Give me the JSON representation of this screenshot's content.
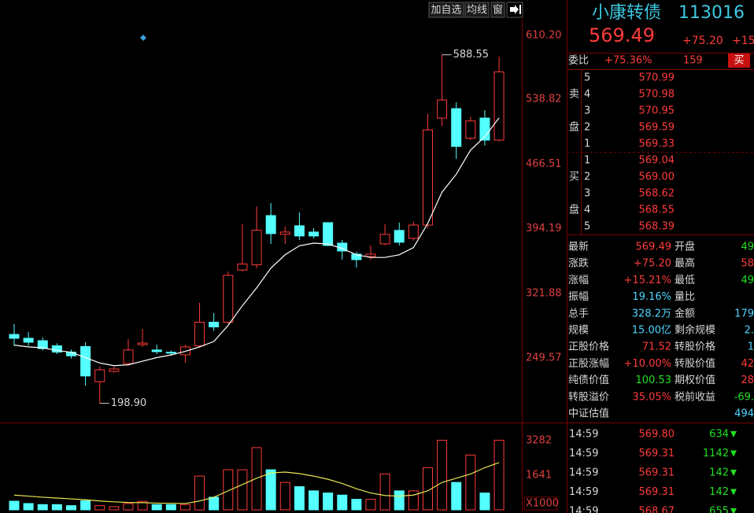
{
  "toolbar": {
    "buttons": [
      "加自选",
      "均线",
      "窗"
    ]
  },
  "kline": {
    "ylim": [
      179.2,
      628.7
    ],
    "yticks": [
      {
        "value": 610.2,
        "label": "610.20"
      },
      {
        "value": 538.82,
        "label": "538.82"
      },
      {
        "value": 466.51,
        "label": "466.51"
      },
      {
        "value": 394.19,
        "label": "394.19"
      },
      {
        "value": 321.88,
        "label": "321.88"
      },
      {
        "value": 249.57,
        "label": "249.57"
      }
    ],
    "candles": [
      {
        "open": 275.9,
        "close": 271.6,
        "high": 287.4,
        "low": 263.2
      },
      {
        "open": 271.6,
        "close": 267.2,
        "high": 278.5,
        "low": 263.2
      },
      {
        "open": 268.9,
        "close": 260.1,
        "high": 272.5,
        "low": 258.0
      },
      {
        "open": 263.2,
        "close": 256.2,
        "high": 266.0,
        "low": 254.0
      },
      {
        "open": 256.2,
        "close": 252.0,
        "high": 259.0,
        "low": 249.0
      },
      {
        "open": 262.4,
        "close": 229.5,
        "high": 267.2,
        "low": 218.8
      },
      {
        "open": 223.1,
        "close": 236.4,
        "high": 240.0,
        "low": 198.9
      },
      {
        "open": 234.6,
        "close": 237.3,
        "high": 240.0,
        "low": 233.0
      },
      {
        "open": 243.4,
        "close": 258.5,
        "high": 270.7,
        "low": 240.8
      },
      {
        "open": 264.5,
        "close": 266.3,
        "high": 282.1,
        "low": 262.0
      },
      {
        "open": 258.5,
        "close": 256.7,
        "high": 264.5,
        "low": 254.0
      },
      {
        "open": 256.0,
        "close": 255.0,
        "high": 258.0,
        "low": 252.0
      },
      {
        "open": 253.2,
        "close": 261.9,
        "high": 264.5,
        "low": 244.3
      },
      {
        "open": 263.2,
        "close": 289.6,
        "high": 311.2,
        "low": 261.0
      },
      {
        "open": 289.6,
        "close": 284.3,
        "high": 299.7,
        "low": 280.0
      },
      {
        "open": 289.6,
        "close": 342.0,
        "high": 346.3,
        "low": 287.4
      },
      {
        "open": 348.0,
        "close": 354.6,
        "high": 399.0,
        "low": 346.3
      },
      {
        "open": 353.7,
        "close": 392.4,
        "high": 419.3,
        "low": 350.0
      },
      {
        "open": 408.8,
        "close": 388.6,
        "high": 422.8,
        "low": 377.2
      },
      {
        "open": 387.8,
        "close": 390.4,
        "high": 396.5,
        "low": 377.2
      },
      {
        "open": 397.4,
        "close": 386.0,
        "high": 412.3,
        "low": 381.6
      },
      {
        "open": 390.4,
        "close": 386.0,
        "high": 394.8,
        "low": 383.3
      },
      {
        "open": 400.9,
        "close": 375.4,
        "high": 400.9,
        "low": 374.5
      },
      {
        "open": 378.0,
        "close": 369.2,
        "high": 381.6,
        "low": 359.5
      },
      {
        "open": 365.7,
        "close": 359.5,
        "high": 368.3,
        "low": 350.7
      },
      {
        "open": 363.0,
        "close": 365.7,
        "high": 375.4,
        "low": 359.5
      },
      {
        "open": 377.2,
        "close": 387.8,
        "high": 399.0,
        "low": 375.4
      },
      {
        "open": 392.2,
        "close": 379.0,
        "high": 400.9,
        "low": 375.4
      },
      {
        "open": 383.4,
        "close": 398.2,
        "high": 401.8,
        "low": 380.7
      },
      {
        "open": 398.2,
        "close": 504.6,
        "high": 522.2,
        "low": 394.8
      },
      {
        "open": 517.8,
        "close": 538.0,
        "high": 588.55,
        "low": 509.0
      },
      {
        "open": 528.4,
        "close": 486.1,
        "high": 535.4,
        "low": 472.1
      },
      {
        "open": 495.2,
        "close": 514.6,
        "high": 519.1,
        "low": 493.2
      },
      {
        "open": 517.8,
        "close": 493.2,
        "high": 526.6,
        "low": 487.1
      },
      {
        "open": 493.2,
        "close": 569.49,
        "high": 586.5,
        "low": 491.5
      }
    ],
    "ma": [
      264,
      262,
      261,
      258,
      256,
      250,
      244,
      241,
      242,
      246,
      250,
      253,
      257,
      262,
      268,
      286,
      308,
      328,
      350,
      365,
      375,
      378,
      377,
      372,
      365,
      362,
      362,
      365,
      373,
      400,
      435,
      455,
      482,
      497,
      518
    ],
    "high_label": "588.55",
    "low_label": "198.90"
  },
  "volume": {
    "ylim": [
      0,
      4028
    ],
    "yticks": [
      3282,
      1641
    ],
    "unit": "X1000",
    "values": [
      410,
      300,
      250,
      250,
      200,
      430,
      200,
      150,
      300,
      400,
      250,
      250,
      250,
      1600,
      600,
      1900,
      1900,
      2950,
      1900,
      1300,
      1100,
      900,
      800,
      700,
      500,
      500,
      1700,
      900,
      900,
      2000,
      3300,
      1300,
      2600,
      800,
      3300
    ],
    "ma": [
      700,
      650,
      600,
      560,
      520,
      480,
      420,
      380,
      350,
      340,
      320,
      310,
      300,
      420,
      600,
      900,
      1200,
      1500,
      1750,
      1790,
      1720,
      1600,
      1450,
      1250,
      1000,
      800,
      680,
      650,
      700,
      900,
      1300,
      1500,
      1700,
      2000,
      2240
    ]
  },
  "quote": {
    "name": "小康转债",
    "code": "113016",
    "price": "569.49",
    "change": "+75.20",
    "change_pct": "+15.",
    "ratio": {
      "label": "委比",
      "pct": "+75.36%",
      "diff": "159",
      "action": "买"
    },
    "sell_label": [
      "卖",
      "盘"
    ],
    "buy_label": [
      "买",
      "盘"
    ],
    "asks": [
      {
        "level": "5",
        "price": "570.99"
      },
      {
        "level": "4",
        "price": "570.98"
      },
      {
        "level": "3",
        "price": "570.95"
      },
      {
        "level": "2",
        "price": "569.59"
      },
      {
        "level": "1",
        "price": "569.33"
      }
    ],
    "bids": [
      {
        "level": "1",
        "price": "569.04"
      },
      {
        "level": "2",
        "price": "569.00"
      },
      {
        "level": "3",
        "price": "568.62"
      },
      {
        "level": "4",
        "price": "568.55"
      },
      {
        "level": "5",
        "price": "568.39"
      }
    ],
    "stats": [
      {
        "left": {
          "label": "最新",
          "value": "569.49",
          "color": "red"
        },
        "right": {
          "label": "开盘",
          "value": "49",
          "color": "green"
        }
      },
      {
        "left": {
          "label": "涨跌",
          "value": "+75.20",
          "color": "red"
        },
        "right": {
          "label": "最高",
          "value": "58",
          "color": "red"
        }
      },
      {
        "left": {
          "label": "涨幅",
          "value": "+15.21%",
          "color": "red"
        },
        "right": {
          "label": "最低",
          "value": "49",
          "color": "green"
        }
      },
      {
        "left": {
          "label": "振幅",
          "value": "19.16%",
          "color": "cyan"
        },
        "right": {
          "label": "量比"
        }
      },
      {
        "left": {
          "label": "总手",
          "value": "328.2万",
          "color": "cyan"
        },
        "right": {
          "label": "金额",
          "value": "179",
          "color": "cyan"
        }
      },
      {
        "left": {
          "label": "规模",
          "value": "15.00亿",
          "color": "cyan"
        },
        "right": {
          "label": "剩余规模",
          "value": "2.",
          "color": "cyan"
        }
      },
      {
        "left": {
          "label": "正股价格",
          "value": "71.52",
          "color": "red"
        },
        "right": {
          "label": "转股价格",
          "value": "1",
          "color": "cyan"
        }
      },
      {
        "left": {
          "label": "正股涨幅",
          "value": "+10.00%",
          "color": "red"
        },
        "right": {
          "label": "转股价值",
          "value": "42",
          "color": "red"
        }
      },
      {
        "left": {
          "label": "纯债价值",
          "value": "100.53",
          "color": "green"
        },
        "right": {
          "label": "期权价值",
          "value": "28",
          "color": "red"
        }
      },
      {
        "left": {
          "label": "转股溢价",
          "value": "35.05%",
          "color": "red"
        },
        "right": {
          "label": "税前收益",
          "value": "-69.",
          "color": "green"
        }
      },
      {
        "left": {
          "label": "中证估值",
          "value": "494",
          "color": "cyan"
        }
      }
    ],
    "trades": [
      {
        "time": "14:59",
        "price": "569.80",
        "vol": "634"
      },
      {
        "time": "14:59",
        "price": "569.31",
        "vol": "1142"
      },
      {
        "time": "14:59",
        "price": "569.31",
        "vol": "142"
      },
      {
        "time": "14:59",
        "price": "569.31",
        "vol": "142"
      },
      {
        "time": "14:59",
        "price": "568.67",
        "vol": "655"
      }
    ]
  }
}
